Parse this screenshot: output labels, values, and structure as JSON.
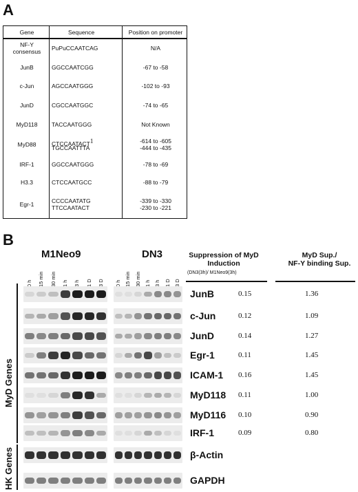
{
  "panel_a": {
    "label": "A",
    "headers": {
      "gene": "Gene",
      "sequence": "Sequence",
      "position": "Position on promoter"
    },
    "rows": [
      {
        "gene": [
          "NF-Y",
          "consensus"
        ],
        "sequence": [
          "PuPuCCAATCAG"
        ],
        "position": [
          "N/A"
        ]
      },
      {
        "gene": [
          "JunB"
        ],
        "sequence": [
          "GGCCAATCGG"
        ],
        "position": [
          "-67 to -58"
        ]
      },
      {
        "gene": [
          "c-Jun"
        ],
        "sequence": [
          "AGCCAATGGG"
        ],
        "position": [
          "-102 to -93"
        ]
      },
      {
        "gene": [
          "JunD"
        ],
        "sequence": [
          "CGCCAATGGC"
        ],
        "position": [
          "-74 to -65"
        ]
      },
      {
        "gene": [
          "MyD118"
        ],
        "sequence": [
          "TACCAATGGG"
        ],
        "position": [
          "Not Known"
        ]
      },
      {
        "gene": [
          "MyD88"
        ],
        "sequence": [
          "CTCCAATACT",
          "TGCCAATTTA"
        ],
        "sequence_sup": "1",
        "position": [
          "-614 to -605",
          "-444 to -435"
        ]
      },
      {
        "gene": [
          "IRF-1"
        ],
        "sequence": [
          "GGCCAATGGG"
        ],
        "position": [
          "-78 to -69"
        ]
      },
      {
        "gene": [
          "H3.3"
        ],
        "sequence": [
          "CTCCAATGCC"
        ],
        "position": [
          "-88 to -79"
        ]
      },
      {
        "gene": [
          "Egr-1"
        ],
        "sequence": [
          "CCCCAATATG",
          "TTCCAATACT"
        ],
        "position": [
          "-339 to -330",
          "-230 to -221"
        ]
      }
    ]
  },
  "panel_b": {
    "label": "B",
    "blot_left_title": "M1Neo9",
    "blot_right_title": "DN3",
    "time_points": [
      "0 h",
      "15 min",
      "30 min",
      "1 h",
      "3 h",
      "1 D",
      "3 D"
    ],
    "suppression_header": [
      "Suppression of MyD",
      "Induction"
    ],
    "suppression_sub": "(DN3(3h)/ M1Neo9(3h)",
    "ratio_header": [
      "MyD Sup./",
      "NF-Y binding Sup."
    ],
    "group_myd": "MyD Genes",
    "group_hk": "HK Genes",
    "myd_genes": [
      {
        "name": "JunB",
        "suppression": "0.15",
        "ratio": "1.36"
      },
      {
        "name": "c-Jun",
        "suppression": "0.12",
        "ratio": "1.09"
      },
      {
        "name": "JunD",
        "suppression": "0.14",
        "ratio": "1.27"
      },
      {
        "name": "Egr-1",
        "suppression": "0.11",
        "ratio": "1.45"
      },
      {
        "name": "ICAM-1",
        "suppression": "0.16",
        "ratio": "1.45"
      },
      {
        "name": "MyD118",
        "suppression": "0.11",
        "ratio": "1.00"
      },
      {
        "name": "MyD116",
        "suppression": "0.10",
        "ratio": "0.90"
      },
      {
        "name": "IRF-1",
        "suppression": "0.09",
        "ratio": "0.80"
      }
    ],
    "hk_genes": [
      {
        "name": "β-Actin"
      },
      {
        "name": "GAPDH"
      }
    ],
    "band_intensity": {
      "m1neo9": [
        [
          0.1,
          0.15,
          0.2,
          0.8,
          0.95,
          0.95,
          0.95
        ],
        [
          0.25,
          0.3,
          0.35,
          0.7,
          0.9,
          0.9,
          0.85
        ],
        [
          0.5,
          0.45,
          0.5,
          0.6,
          0.75,
          0.75,
          0.7
        ],
        [
          0.15,
          0.5,
          0.8,
          0.9,
          0.75,
          0.6,
          0.55
        ],
        [
          0.55,
          0.55,
          0.6,
          0.85,
          0.95,
          0.95,
          0.95
        ],
        [
          0.05,
          0.05,
          0.1,
          0.5,
          0.9,
          0.85,
          0.3
        ],
        [
          0.4,
          0.35,
          0.4,
          0.5,
          0.8,
          0.7,
          0.6
        ],
        [
          0.2,
          0.2,
          0.25,
          0.4,
          0.5,
          0.45,
          0.3
        ],
        [
          0.85,
          0.85,
          0.85,
          0.85,
          0.85,
          0.85,
          0.85
        ],
        [
          0.5,
          0.5,
          0.5,
          0.5,
          0.5,
          0.5,
          0.5
        ]
      ],
      "dn3": [
        [
          0.05,
          0.05,
          0.1,
          0.3,
          0.45,
          0.45,
          0.4
        ],
        [
          0.2,
          0.25,
          0.4,
          0.55,
          0.6,
          0.6,
          0.55
        ],
        [
          0.3,
          0.3,
          0.35,
          0.45,
          0.5,
          0.5,
          0.45
        ],
        [
          0.1,
          0.3,
          0.55,
          0.75,
          0.35,
          0.2,
          0.15
        ],
        [
          0.45,
          0.5,
          0.5,
          0.6,
          0.75,
          0.75,
          0.7
        ],
        [
          0.05,
          0.05,
          0.1,
          0.25,
          0.3,
          0.25,
          0.1
        ],
        [
          0.35,
          0.35,
          0.35,
          0.4,
          0.45,
          0.4,
          0.35
        ],
        [
          0.05,
          0.05,
          0.1,
          0.3,
          0.2,
          0.1,
          0.05
        ],
        [
          0.85,
          0.85,
          0.85,
          0.85,
          0.85,
          0.85,
          0.85
        ],
        [
          0.5,
          0.5,
          0.5,
          0.5,
          0.5,
          0.5,
          0.5
        ]
      ]
    }
  }
}
